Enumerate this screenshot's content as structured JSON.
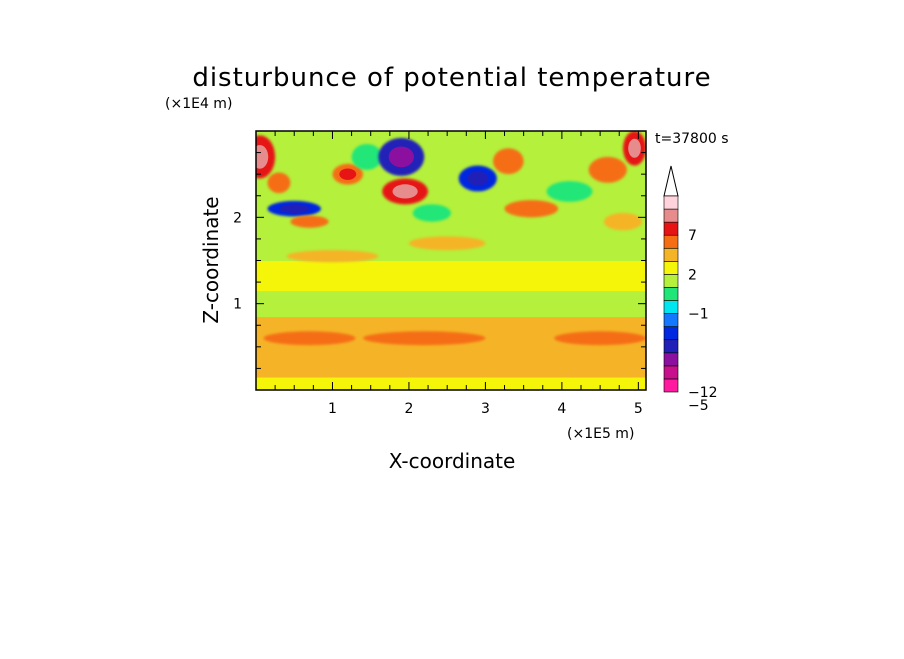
{
  "chart_data": {
    "type": "heatmap",
    "title": "disturbunce of potential temperature",
    "time_label": "t=37800 s",
    "xlabel": "X-coordinate",
    "ylabel": "Z-coordinate",
    "x_unit": "(×1E5 m)",
    "y_unit": "(×1E4 m)",
    "xlim": [
      0,
      5.1
    ],
    "ylim": [
      0,
      3.0
    ],
    "x_ticks": [
      "1",
      "2",
      "3",
      "4",
      "5"
    ],
    "x_tick_values": [
      1,
      2,
      3,
      4,
      5
    ],
    "y_ticks": [
      "1",
      "2"
    ],
    "y_tick_values": [
      1,
      2
    ],
    "colorbar": {
      "labels": [
        "7",
        "2",
        "−1",
        "−5",
        "−12"
      ],
      "label_levels": [
        7,
        2,
        -1,
        -5,
        -12
      ],
      "levels": [
        -12,
        -10,
        -8,
        -6,
        -4,
        -2,
        -1,
        0,
        1,
        2,
        3,
        5,
        7,
        9
      ],
      "colors": [
        "#ff1aa0",
        "#c8108c",
        "#8c10a0",
        "#2020b8",
        "#0028e0",
        "#1478ff",
        "#00e6f0",
        "#20e678",
        "#b4f03c",
        "#f5f50a",
        "#f5b428",
        "#f56e14",
        "#e61414",
        "#e68c8c",
        "#ffd2dc"
      ]
    },
    "bands": [
      {
        "z": [
          0.0,
          0.15
        ],
        "value": 1.5
      },
      {
        "z": [
          0.15,
          0.85
        ],
        "value": 2.0
      },
      {
        "z": [
          0.85,
          1.15
        ],
        "value": 0.5
      },
      {
        "z": [
          1.15,
          1.5
        ],
        "value": 1.5
      },
      {
        "z": [
          1.5,
          3.0
        ],
        "value": 0.0
      }
    ],
    "features": [
      {
        "x": 0.05,
        "z": 2.7,
        "rx": 0.2,
        "rz": 0.25,
        "value": 6
      },
      {
        "x": 0.3,
        "z": 2.4,
        "rx": 0.15,
        "rz": 0.12,
        "value": 3
      },
      {
        "x": 0.5,
        "z": 2.1,
        "rx": 0.35,
        "rz": 0.09,
        "value": -5
      },
      {
        "x": 0.7,
        "z": 1.95,
        "rx": 0.25,
        "rz": 0.07,
        "value": 3
      },
      {
        "x": 1.2,
        "z": 2.5,
        "rx": 0.2,
        "rz": 0.12,
        "value": 4
      },
      {
        "x": 1.45,
        "z": 2.7,
        "rx": 0.2,
        "rz": 0.15,
        "value": -1
      },
      {
        "x": 1.9,
        "z": 2.7,
        "rx": 0.3,
        "rz": 0.22,
        "value": -8
      },
      {
        "x": 1.95,
        "z": 2.3,
        "rx": 0.3,
        "rz": 0.15,
        "value": 5
      },
      {
        "x": 2.3,
        "z": 2.05,
        "rx": 0.25,
        "rz": 0.1,
        "value": -1
      },
      {
        "x": 2.9,
        "z": 2.45,
        "rx": 0.25,
        "rz": 0.15,
        "value": -5
      },
      {
        "x": 3.3,
        "z": 2.65,
        "rx": 0.2,
        "rz": 0.15,
        "value": 3
      },
      {
        "x": 3.6,
        "z": 2.1,
        "rx": 0.35,
        "rz": 0.1,
        "value": 3
      },
      {
        "x": 4.1,
        "z": 2.3,
        "rx": 0.3,
        "rz": 0.12,
        "value": -1
      },
      {
        "x": 4.6,
        "z": 2.55,
        "rx": 0.25,
        "rz": 0.15,
        "value": 3
      },
      {
        "x": 4.95,
        "z": 2.8,
        "rx": 0.15,
        "rz": 0.2,
        "value": 6
      },
      {
        "x": 4.8,
        "z": 1.95,
        "rx": 0.25,
        "rz": 0.1,
        "value": 2
      },
      {
        "x": 2.5,
        "z": 1.7,
        "rx": 0.5,
        "rz": 0.08,
        "value": 2
      },
      {
        "x": 1.0,
        "z": 1.55,
        "rx": 0.6,
        "rz": 0.07,
        "value": 2
      },
      {
        "x": 2.2,
        "z": 0.6,
        "rx": 0.8,
        "rz": 0.08,
        "value": 3
      },
      {
        "x": 4.5,
        "z": 0.6,
        "rx": 0.6,
        "rz": 0.08,
        "value": 3
      },
      {
        "x": 0.7,
        "z": 0.6,
        "rx": 0.6,
        "rz": 0.08,
        "value": 3
      }
    ]
  }
}
